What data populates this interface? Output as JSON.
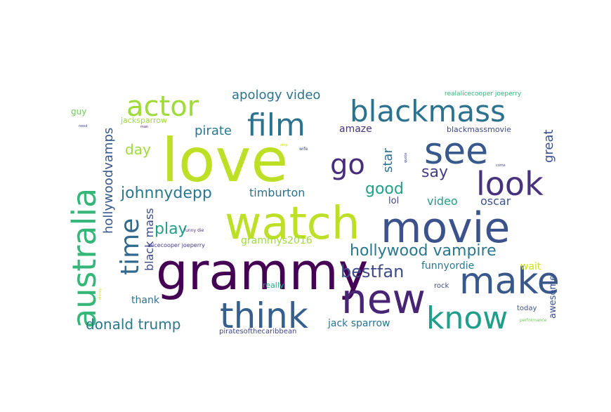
{
  "word_cloud": {
    "words": [
      {
        "text": "love",
        "color": "#bddf26"
      },
      {
        "text": "grammy",
        "color": "#440154"
      },
      {
        "text": "watch",
        "color": "#bddf26"
      },
      {
        "text": "movie",
        "color": "#3b528b"
      },
      {
        "text": "new",
        "color": "#482475"
      },
      {
        "text": "make",
        "color": "#38588c"
      },
      {
        "text": "think",
        "color": "#355f8d"
      },
      {
        "text": "see",
        "color": "#38598c"
      },
      {
        "text": "australia",
        "color": "#35b779"
      },
      {
        "text": "blackmass",
        "color": "#2c728e"
      },
      {
        "text": "look",
        "color": "#46327e"
      },
      {
        "text": "know",
        "color": "#1f9e89"
      },
      {
        "text": "film",
        "color": "#2c728e"
      },
      {
        "text": "actor",
        "color": "#a0da39"
      },
      {
        "text": "go",
        "color": "#472d7b"
      },
      {
        "text": "time",
        "color": "#31688e"
      },
      {
        "text": "hollywood vampire",
        "color": "#2a788e"
      },
      {
        "text": "johnnydepp",
        "color": "#2a788e"
      },
      {
        "text": "bestfan",
        "color": "#3e4a89"
      },
      {
        "text": "donald trump",
        "color": "#2a788e"
      },
      {
        "text": "play",
        "color": "#1f9e89"
      },
      {
        "text": "good",
        "color": "#1fa187"
      },
      {
        "text": "say",
        "color": "#433e85"
      },
      {
        "text": "hollywoodvamps",
        "color": "#38588c"
      },
      {
        "text": "day",
        "color": "#a0da39"
      },
      {
        "text": "pirate",
        "color": "#2a788e"
      },
      {
        "text": "apology video",
        "color": "#2c728e"
      },
      {
        "text": "timburton",
        "color": "#2c728e"
      },
      {
        "text": "star",
        "color": "#2c728e"
      },
      {
        "text": "great",
        "color": "#3b528b"
      },
      {
        "text": "black mass",
        "color": "#3e4a89"
      },
      {
        "text": "oscar",
        "color": "#3b528b"
      },
      {
        "text": "video",
        "color": "#1f9e89"
      },
      {
        "text": "jack sparrow",
        "color": "#2c728e"
      },
      {
        "text": "grammys2016",
        "color": "#a0da39"
      },
      {
        "text": "funnyordie",
        "color": "#2a788e"
      },
      {
        "text": "thank",
        "color": "#2c728e"
      },
      {
        "text": "amaze",
        "color": "#46327e"
      },
      {
        "text": "awesome",
        "color": "#3b528b"
      },
      {
        "text": "wait",
        "color": "#d0e11c"
      },
      {
        "text": "lol",
        "color": "#3e4a89"
      },
      {
        "text": "guy",
        "color": "#6ece58"
      },
      {
        "text": "jacksparrow",
        "color": "#a0da39"
      },
      {
        "text": "blackmassmovie",
        "color": "#3e4a89"
      },
      {
        "text": "realalicecooper joeperry",
        "color": "#35b779"
      },
      {
        "text": "really",
        "color": "#22a884"
      },
      {
        "text": "rock",
        "color": "#3e4a89"
      },
      {
        "text": "today",
        "color": "#3b528b"
      },
      {
        "text": "piratesofthecaribbean",
        "color": "#404688"
      },
      {
        "text": "alicecooper joeperry",
        "color": "#443983"
      },
      {
        "text": "funny die",
        "color": "#472d7b"
      },
      {
        "text": "performance",
        "color": "#6ece58"
      },
      {
        "text": "need",
        "color": "#3e4a89"
      },
      {
        "text": "man",
        "color": "#482475"
      },
      {
        "text": "wife",
        "color": "#3e4a89"
      },
      {
        "text": "quote",
        "color": "#3e4a89"
      },
      {
        "text": "come",
        "color": "#3e4a89"
      },
      {
        "text": "stop",
        "color": "#d8e219"
      },
      {
        "text": "disney",
        "color": "#d0e11c"
      }
    ]
  }
}
